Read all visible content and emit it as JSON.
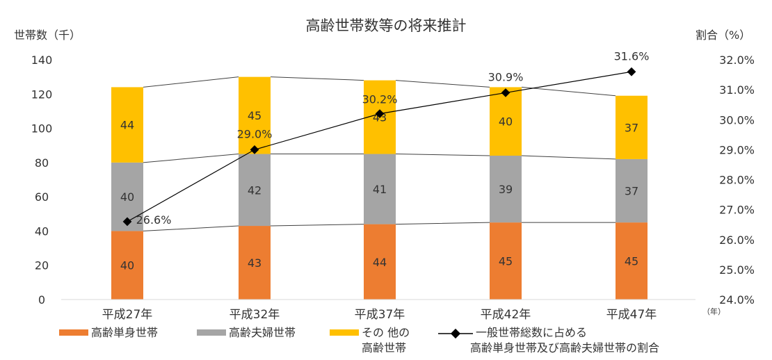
{
  "chart_data": {
    "type": "bar",
    "title": "高齢世帯数等の将来推計",
    "ylabel_left": "世帯数（千）",
    "ylabel_right": "割合（%）",
    "xunit": "（年）",
    "categories": [
      "平成27年",
      "平成32年",
      "平成37年",
      "平成42年",
      "平成47年"
    ],
    "ylim": [
      0,
      140
    ],
    "y_ticks": [
      0,
      20,
      40,
      60,
      80,
      100,
      120,
      140
    ],
    "y2lim": [
      24.0,
      32.0
    ],
    "y2_ticks": [
      "24.0%",
      "25.0%",
      "26.0%",
      "27.0%",
      "28.0%",
      "29.0%",
      "30.0%",
      "31.0%",
      "32.0%"
    ],
    "stacked": true,
    "series": [
      {
        "name": "高齢単身世帯",
        "color": "#ED7D31",
        "values": [
          40,
          43,
          44,
          45,
          45
        ]
      },
      {
        "name": "高齢夫婦世帯",
        "color": "#A5A5A5",
        "values": [
          40,
          42,
          41,
          39,
          37
        ]
      },
      {
        "name": "その他の高齢世帯",
        "color": "#FFC000",
        "values": [
          44,
          45,
          43,
          40,
          37
        ]
      }
    ],
    "line_series": {
      "name": "一般世帯総数に占める高齢単身世帯及び高齢夫婦世帯の割合",
      "axis": "right",
      "color": "#000000",
      "values": [
        26.6,
        29.0,
        30.2,
        30.9,
        31.6
      ],
      "labels": [
        "26.6%",
        "29.0%",
        "30.2%",
        "30.9%",
        "31.6%"
      ]
    },
    "legend_labels": {
      "single": "高齢単身世帯",
      "couple": "高齢夫婦世帯",
      "other_line1": "その 他の",
      "other_line2": "高齢世帯",
      "ratio_line1": "一般世帯総数に占める",
      "ratio_line2": "高齢単身世帯及び高齢夫婦世帯の割合"
    },
    "grid": false,
    "legend_position": "bottom"
  }
}
